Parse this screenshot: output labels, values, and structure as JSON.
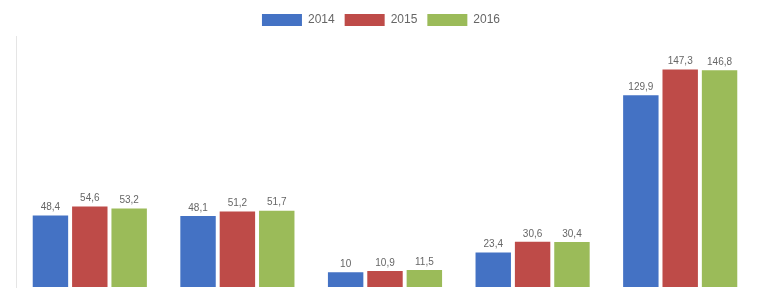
{
  "chart_data": {
    "type": "bar",
    "categories": [
      null,
      null,
      null,
      null,
      null
    ],
    "series": [
      {
        "name": "2014",
        "color": "#4472C4",
        "values": [
          48.4,
          48.1,
          10.0,
          23.4,
          129.9
        ],
        "value_labels": [
          "48,4",
          "48,1",
          "10",
          "23,4",
          "129,9"
        ]
      },
      {
        "name": "2015",
        "color": "#BE4B48",
        "values": [
          54.6,
          51.2,
          10.9,
          30.6,
          147.3
        ],
        "value_labels": [
          "54,6",
          "51,2",
          "10,9",
          "30,6",
          "147,3"
        ]
      },
      {
        "name": "2016",
        "color": "#9BBB59",
        "values": [
          53.2,
          51.7,
          11.5,
          30.4,
          146.8
        ],
        "value_labels": [
          "53,2",
          "51,7",
          "11,5",
          "30,4",
          "146,8"
        ]
      }
    ],
    "ylim": [
      0,
      170
    ],
    "data_labels": true,
    "tick_labels": false,
    "grid": false,
    "legend": "top"
  }
}
